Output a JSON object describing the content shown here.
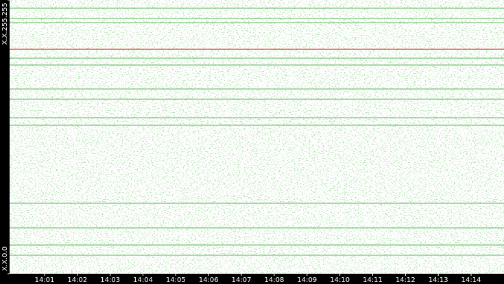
{
  "chart_data": {
    "type": "address-timeline",
    "xticks": [
      "14:01",
      "14:02",
      "14:03",
      "14:04",
      "14:05",
      "14:06",
      "14:07",
      "14:08",
      "14:09",
      "14:10",
      "14:11",
      "14:12",
      "14:13",
      "14:14"
    ],
    "ylim": [
      0,
      65535
    ],
    "yticks": [
      {
        "value": 0,
        "label": "X.X.0.0"
      },
      {
        "value": 65535,
        "label": "X.X.255.255"
      }
    ],
    "lines": [
      {
        "value": 63567,
        "color": "#7cc47a"
      },
      {
        "value": 61110,
        "color": "#7cc47a"
      },
      {
        "value": 60127,
        "color": "#7cc47a"
      },
      {
        "value": 53739,
        "color": "#d0402a"
      },
      {
        "value": 51609,
        "color": "#7cc47a"
      },
      {
        "value": 49971,
        "color": "#7cc47a"
      },
      {
        "value": 44236,
        "color": "#7cc47a"
      },
      {
        "value": 41779,
        "color": "#7cc47a"
      },
      {
        "value": 37355,
        "color": "#7cc47a"
      },
      {
        "value": 35553,
        "color": "#7cc47a"
      },
      {
        "value": 16876,
        "color": "#7cc47a"
      },
      {
        "value": 10977,
        "color": "#7cc47a"
      },
      {
        "value": 6881,
        "color": "#7cc47a"
      },
      {
        "value": 4424,
        "color": "#7cc47a"
      }
    ]
  }
}
